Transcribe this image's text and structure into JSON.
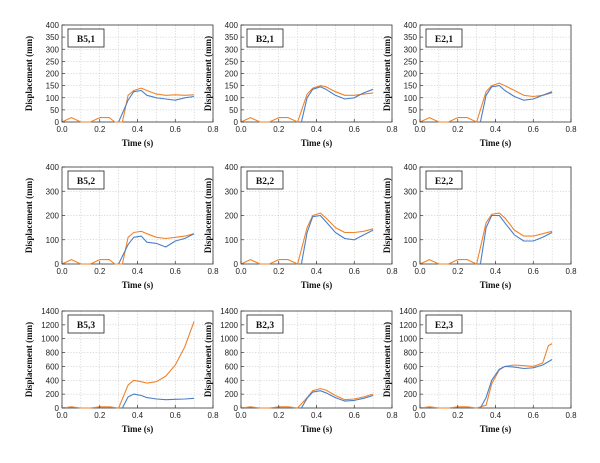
{
  "figure": {
    "xlabel": "Time (s)",
    "ylabel": "Displacement (mm)",
    "colors": {
      "orange": "#f0832a",
      "blue": "#4a7fc8",
      "grid": "#b8b8b8",
      "axis": "#333333"
    }
  },
  "chart_data": [
    {
      "type": "line",
      "label": "B5,1",
      "xlabel": "Time (s)",
      "ylabel": "Displacement (mm)",
      "xlim": [
        0,
        0.8
      ],
      "ylim": [
        0,
        400
      ],
      "grid": true,
      "xticks": [
        "0.0",
        "0.2",
        "0.4",
        "0.6",
        "0.8"
      ],
      "yticks": [
        "0",
        "50",
        "100",
        "150",
        "200",
        "250",
        "300",
        "350",
        "400"
      ],
      "series": [
        {
          "color": "#f0832a",
          "x": [
            0,
            0.05,
            0.1,
            0.15,
            0.2,
            0.25,
            0.28,
            0.32,
            0.35,
            0.38,
            0.42,
            0.45,
            0.5,
            0.55,
            0.6,
            0.65,
            0.7
          ],
          "y": [
            0,
            18,
            0,
            0,
            18,
            18,
            0,
            0,
            110,
            130,
            140,
            130,
            115,
            110,
            112,
            110,
            112
          ]
        },
        {
          "color": "#4a7fc8",
          "x": [
            0.3,
            0.35,
            0.38,
            0.42,
            0.45,
            0.5,
            0.55,
            0.6,
            0.65,
            0.7
          ],
          "y": [
            0,
            90,
            125,
            130,
            110,
            100,
            95,
            90,
            100,
            105
          ]
        }
      ]
    },
    {
      "type": "line",
      "label": "B2,1",
      "xlabel": "Time (s)",
      "ylabel": "Displacement (mm)",
      "xlim": [
        0,
        0.8
      ],
      "ylim": [
        0,
        400
      ],
      "grid": true,
      "xticks": [
        "0.0",
        "0.2",
        "0.4",
        "0.6",
        "0.8"
      ],
      "yticks": [
        "0",
        "50",
        "100",
        "150",
        "200",
        "250",
        "300",
        "350",
        "400"
      ],
      "series": [
        {
          "color": "#f0832a",
          "x": [
            0,
            0.05,
            0.1,
            0.15,
            0.2,
            0.25,
            0.3,
            0.35,
            0.38,
            0.42,
            0.45,
            0.5,
            0.55,
            0.6,
            0.65,
            0.7
          ],
          "y": [
            0,
            18,
            0,
            0,
            18,
            18,
            0,
            115,
            140,
            150,
            145,
            125,
            110,
            110,
            115,
            120
          ]
        },
        {
          "color": "#4a7fc8",
          "x": [
            0.32,
            0.35,
            0.38,
            0.42,
            0.45,
            0.5,
            0.55,
            0.6,
            0.65,
            0.7
          ],
          "y": [
            0,
            100,
            135,
            145,
            135,
            110,
            95,
            100,
            120,
            135
          ]
        }
      ]
    },
    {
      "type": "line",
      "label": "E2,1",
      "xlabel": "Time (s)",
      "ylabel": "Displacement (mm)",
      "xlim": [
        0,
        0.8
      ],
      "ylim": [
        0,
        400
      ],
      "grid": true,
      "xticks": [
        "0.0",
        "0.2",
        "0.4",
        "0.6",
        "0.8"
      ],
      "yticks": [
        "0",
        "50",
        "100",
        "150",
        "200",
        "250",
        "300",
        "350",
        "400"
      ],
      "series": [
        {
          "color": "#f0832a",
          "x": [
            0,
            0.05,
            0.1,
            0.15,
            0.2,
            0.25,
            0.3,
            0.35,
            0.38,
            0.42,
            0.45,
            0.5,
            0.55,
            0.6,
            0.65,
            0.7
          ],
          "y": [
            0,
            18,
            0,
            0,
            18,
            18,
            0,
            125,
            150,
            160,
            150,
            130,
            110,
            105,
            110,
            120
          ]
        },
        {
          "color": "#4a7fc8",
          "x": [
            0.32,
            0.35,
            0.38,
            0.42,
            0.45,
            0.5,
            0.55,
            0.6,
            0.65,
            0.7
          ],
          "y": [
            0,
            110,
            145,
            150,
            130,
            105,
            90,
            95,
            110,
            125
          ]
        }
      ]
    },
    {
      "type": "line",
      "label": "B5,2",
      "xlabel": "Time (s)",
      "ylabel": "Displacement (mm)",
      "xlim": [
        0,
        0.8
      ],
      "ylim": [
        0,
        400
      ],
      "grid": true,
      "xticks": [
        "0.0",
        "0.2",
        "0.4",
        "0.6",
        "0.8"
      ],
      "yticks": [
        "0",
        "100",
        "200",
        "300",
        "400"
      ],
      "series": [
        {
          "color": "#f0832a",
          "x": [
            0,
            0.05,
            0.1,
            0.15,
            0.2,
            0.25,
            0.28,
            0.32,
            0.35,
            0.38,
            0.42,
            0.45,
            0.5,
            0.55,
            0.6,
            0.65,
            0.7
          ],
          "y": [
            0,
            18,
            0,
            0,
            18,
            18,
            0,
            0,
            110,
            130,
            135,
            125,
            110,
            105,
            110,
            115,
            125
          ]
        },
        {
          "color": "#4a7fc8",
          "x": [
            0.3,
            0.35,
            0.38,
            0.42,
            0.45,
            0.5,
            0.55,
            0.6,
            0.65,
            0.7
          ],
          "y": [
            0,
            80,
            110,
            115,
            90,
            85,
            70,
            95,
            105,
            125
          ]
        }
      ]
    },
    {
      "type": "line",
      "label": "B2,2",
      "xlabel": "Time (s)",
      "ylabel": "Displacement (mm)",
      "xlim": [
        0,
        0.8
      ],
      "ylim": [
        0,
        400
      ],
      "grid": true,
      "xticks": [
        "0.0",
        "0.2",
        "0.4",
        "0.6",
        "0.8"
      ],
      "yticks": [
        "0",
        "100",
        "200",
        "300",
        "400"
      ],
      "series": [
        {
          "color": "#f0832a",
          "x": [
            0,
            0.05,
            0.1,
            0.15,
            0.2,
            0.25,
            0.3,
            0.35,
            0.38,
            0.42,
            0.45,
            0.5,
            0.55,
            0.6,
            0.65,
            0.7
          ],
          "y": [
            0,
            18,
            0,
            0,
            18,
            18,
            0,
            150,
            200,
            210,
            190,
            150,
            130,
            130,
            135,
            145
          ]
        },
        {
          "color": "#4a7fc8",
          "x": [
            0.32,
            0.35,
            0.38,
            0.42,
            0.45,
            0.5,
            0.55,
            0.6,
            0.65,
            0.7
          ],
          "y": [
            0,
            130,
            195,
            200,
            175,
            130,
            105,
            100,
            120,
            140
          ]
        }
      ]
    },
    {
      "type": "line",
      "label": "E2,2",
      "xlabel": "Time (s)",
      "ylabel": "Displacement (mm)",
      "xlim": [
        0,
        0.8
      ],
      "ylim": [
        0,
        400
      ],
      "grid": true,
      "xticks": [
        "0.0",
        "0.2",
        "0.4",
        "0.6",
        "0.8"
      ],
      "yticks": [
        "0",
        "100",
        "200",
        "300",
        "400"
      ],
      "series": [
        {
          "color": "#f0832a",
          "x": [
            0,
            0.05,
            0.1,
            0.15,
            0.2,
            0.25,
            0.3,
            0.35,
            0.38,
            0.42,
            0.45,
            0.5,
            0.55,
            0.6,
            0.65,
            0.7
          ],
          "y": [
            0,
            18,
            0,
            0,
            18,
            18,
            0,
            170,
            205,
            210,
            190,
            140,
            115,
            115,
            125,
            135
          ]
        },
        {
          "color": "#4a7fc8",
          "x": [
            0.32,
            0.35,
            0.38,
            0.42,
            0.45,
            0.5,
            0.55,
            0.6,
            0.65,
            0.7
          ],
          "y": [
            0,
            150,
            200,
            200,
            170,
            120,
            95,
            95,
            110,
            130
          ]
        }
      ]
    },
    {
      "type": "line",
      "label": "B5,3",
      "xlabel": "Time (s)",
      "ylabel": "Displacement (mm)",
      "xlim": [
        0,
        0.8
      ],
      "ylim": [
        0,
        1400
      ],
      "grid": true,
      "xticks": [
        "0.0",
        "0.2",
        "0.4",
        "0.6",
        "0.8"
      ],
      "yticks": [
        "0",
        "200",
        "400",
        "600",
        "800",
        "1000",
        "1200",
        "1400"
      ],
      "series": [
        {
          "color": "#f0832a",
          "x": [
            0,
            0.05,
            0.1,
            0.15,
            0.2,
            0.25,
            0.3,
            0.35,
            0.38,
            0.42,
            0.45,
            0.5,
            0.55,
            0.6,
            0.65,
            0.7
          ],
          "y": [
            0,
            18,
            0,
            0,
            18,
            18,
            0,
            330,
            400,
            380,
            360,
            380,
            460,
            620,
            880,
            1250
          ]
        },
        {
          "color": "#4a7fc8",
          "x": [
            0.32,
            0.35,
            0.38,
            0.42,
            0.45,
            0.5,
            0.55,
            0.6,
            0.65,
            0.7
          ],
          "y": [
            0,
            160,
            200,
            180,
            150,
            130,
            120,
            125,
            130,
            140
          ]
        }
      ]
    },
    {
      "type": "line",
      "label": "B2,3",
      "xlabel": "Time (s)",
      "ylabel": "Displacement (mm)",
      "xlim": [
        0,
        0.8
      ],
      "ylim": [
        0,
        1400
      ],
      "grid": true,
      "xticks": [
        "0.0",
        "0.2",
        "0.4",
        "0.6",
        "0.8"
      ],
      "yticks": [
        "0",
        "200",
        "400",
        "600",
        "800",
        "1000",
        "1200",
        "1400"
      ],
      "series": [
        {
          "color": "#f0832a",
          "x": [
            0,
            0.05,
            0.1,
            0.15,
            0.2,
            0.25,
            0.3,
            0.35,
            0.38,
            0.42,
            0.45,
            0.5,
            0.55,
            0.6,
            0.65,
            0.7
          ],
          "y": [
            0,
            18,
            0,
            0,
            18,
            18,
            0,
            150,
            250,
            280,
            260,
            180,
            120,
            130,
            160,
            200
          ]
        },
        {
          "color": "#4a7fc8",
          "x": [
            0.32,
            0.35,
            0.38,
            0.42,
            0.45,
            0.5,
            0.55,
            0.6,
            0.65,
            0.7
          ],
          "y": [
            0,
            140,
            230,
            250,
            220,
            150,
            100,
            110,
            140,
            180
          ]
        }
      ]
    },
    {
      "type": "line",
      "label": "E2,3",
      "xlabel": "Time (s)",
      "ylabel": "Displacement (mm)",
      "xlim": [
        0,
        0.8
      ],
      "ylim": [
        0,
        1400
      ],
      "grid": true,
      "xticks": [
        "0.0",
        "0.2",
        "0.4",
        "0.6",
        "0.8"
      ],
      "yticks": [
        "0",
        "200",
        "400",
        "600",
        "800",
        "1000",
        "1200",
        "1400"
      ],
      "series": [
        {
          "color": "#f0832a",
          "x": [
            0,
            0.05,
            0.1,
            0.15,
            0.2,
            0.25,
            0.3,
            0.35,
            0.38,
            0.42,
            0.45,
            0.5,
            0.55,
            0.6,
            0.65,
            0.68,
            0.7
          ],
          "y": [
            0,
            18,
            0,
            0,
            18,
            18,
            0,
            40,
            350,
            550,
            600,
            620,
            610,
            600,
            650,
            900,
            930
          ]
        },
        {
          "color": "#4a7fc8",
          "x": [
            0.32,
            0.35,
            0.38,
            0.42,
            0.45,
            0.5,
            0.55,
            0.6,
            0.65,
            0.7
          ],
          "y": [
            0,
            150,
            400,
            560,
            600,
            590,
            570,
            580,
            620,
            700
          ]
        }
      ]
    }
  ]
}
